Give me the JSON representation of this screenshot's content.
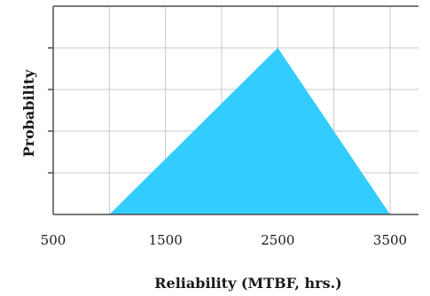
{
  "chart_data": {
    "type": "area",
    "title": "",
    "xlabel": "Reliability (MTBF, hrs.)",
    "ylabel": "Probability",
    "x_ticks": [
      "500",
      "1500",
      "2500",
      "3500"
    ],
    "xlim": [
      500,
      3700
    ],
    "ylim": [
      0,
      5
    ],
    "y_ticks_labeled": false,
    "grid": true,
    "legend": "none",
    "series": [
      {
        "x": [
          1000,
          2500,
          3500
        ],
        "y": [
          0,
          4,
          0
        ],
        "color": "#33ccff"
      }
    ]
  }
}
